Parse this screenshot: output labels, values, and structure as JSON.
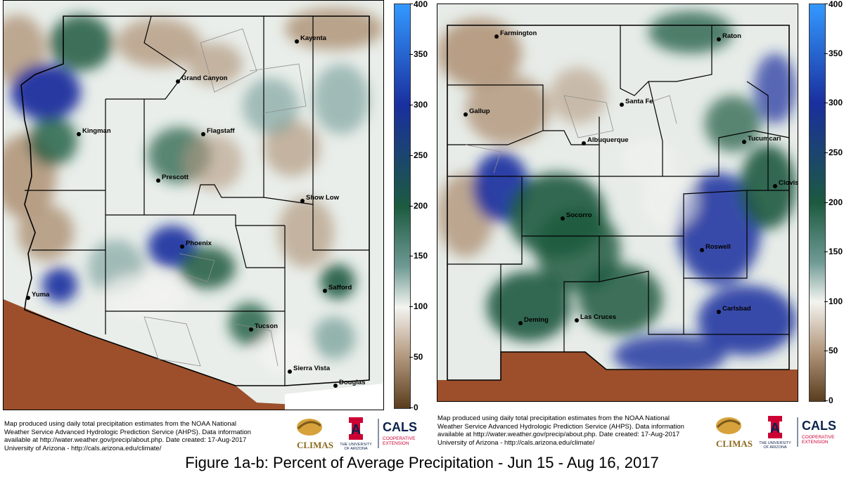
{
  "figure_caption": "Figure 1a-b: Percent of Average Precipitation - Jun 15 - Aug 16, 2017",
  "colorbar": {
    "ticks": [
      "400",
      "350",
      "300",
      "250",
      "200",
      "150",
      "100",
      "50",
      "0"
    ],
    "colors": {
      "top": "#3399ff",
      "blue": "#1a2f9e",
      "green": "#1c5a40",
      "teal": "#6f9a94",
      "white": "#f4f4f0",
      "tan": "#b49a80",
      "brown": "#5a3d1e"
    }
  },
  "credit_lines": [
    "Map produced using daily total precipitation estimates from the NOAA National",
    "Weather Service Advanced Hydrologic Prediction Service (AHPS). Data information",
    "available at http://water.weather.gov/precip/about.php. Date created: 17-Aug-2017",
    "University of Arizona - http://cals.arizona.edu/climate/"
  ],
  "logos": {
    "climas": "CLIMAS",
    "ua_top": "THE UNIVERSITY",
    "ua_bottom": "OF ARIZONA",
    "cals": "CALS",
    "cals_sub1": "COOPERATIVE",
    "cals_sub2": "EXTENSION"
  },
  "maps": [
    {
      "state": "Arizona",
      "cities": [
        {
          "name": "Kayenta"
        },
        {
          "name": "Grand Canyon"
        },
        {
          "name": "Kingman"
        },
        {
          "name": "Flagstaff"
        },
        {
          "name": "Prescott"
        },
        {
          "name": "Show Low"
        },
        {
          "name": "Phoenix"
        },
        {
          "name": "Yuma"
        },
        {
          "name": "Safford"
        },
        {
          "name": "Tucson"
        },
        {
          "name": "Sierra Vista"
        },
        {
          "name": "Douglas"
        }
      ]
    },
    {
      "state": "New Mexico",
      "cities": [
        {
          "name": "Farmington"
        },
        {
          "name": "Raton"
        },
        {
          "name": "Gallup"
        },
        {
          "name": "Santa Fe"
        },
        {
          "name": "Albuquerque"
        },
        {
          "name": "Tucumcari"
        },
        {
          "name": "Clovis"
        },
        {
          "name": "Socorro"
        },
        {
          "name": "Roswell"
        },
        {
          "name": "Deming"
        },
        {
          "name": "Las Cruces"
        },
        {
          "name": "Carlsbad"
        }
      ]
    }
  ],
  "colors": {
    "ground": "#9c4f2a",
    "border": "#000000"
  }
}
